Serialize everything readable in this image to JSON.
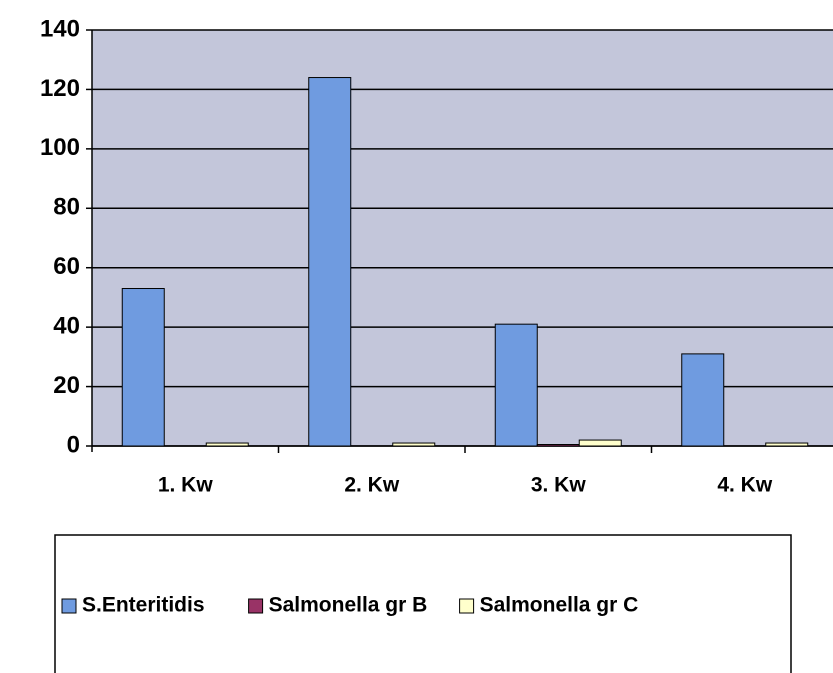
{
  "chart_data": {
    "type": "bar",
    "categories": [
      "1. Kw",
      "2. Kw",
      "3. Kw",
      "4. Kw"
    ],
    "series": [
      {
        "name": "S.Enteritidis",
        "color": "#6f9be0",
        "values": [
          53,
          124,
          41,
          31
        ]
      },
      {
        "name": "Salmonella gr B",
        "color": "#993366",
        "values": [
          0,
          0,
          0.5,
          0
        ]
      },
      {
        "name": "Salmonella gr C",
        "color": "#ffffcc",
        "values": [
          1,
          1,
          2,
          1
        ]
      }
    ],
    "ylim": [
      0,
      140
    ],
    "yticks": [
      0,
      20,
      40,
      60,
      80,
      100,
      120,
      140
    ],
    "grid": true,
    "legend": "bottom"
  }
}
